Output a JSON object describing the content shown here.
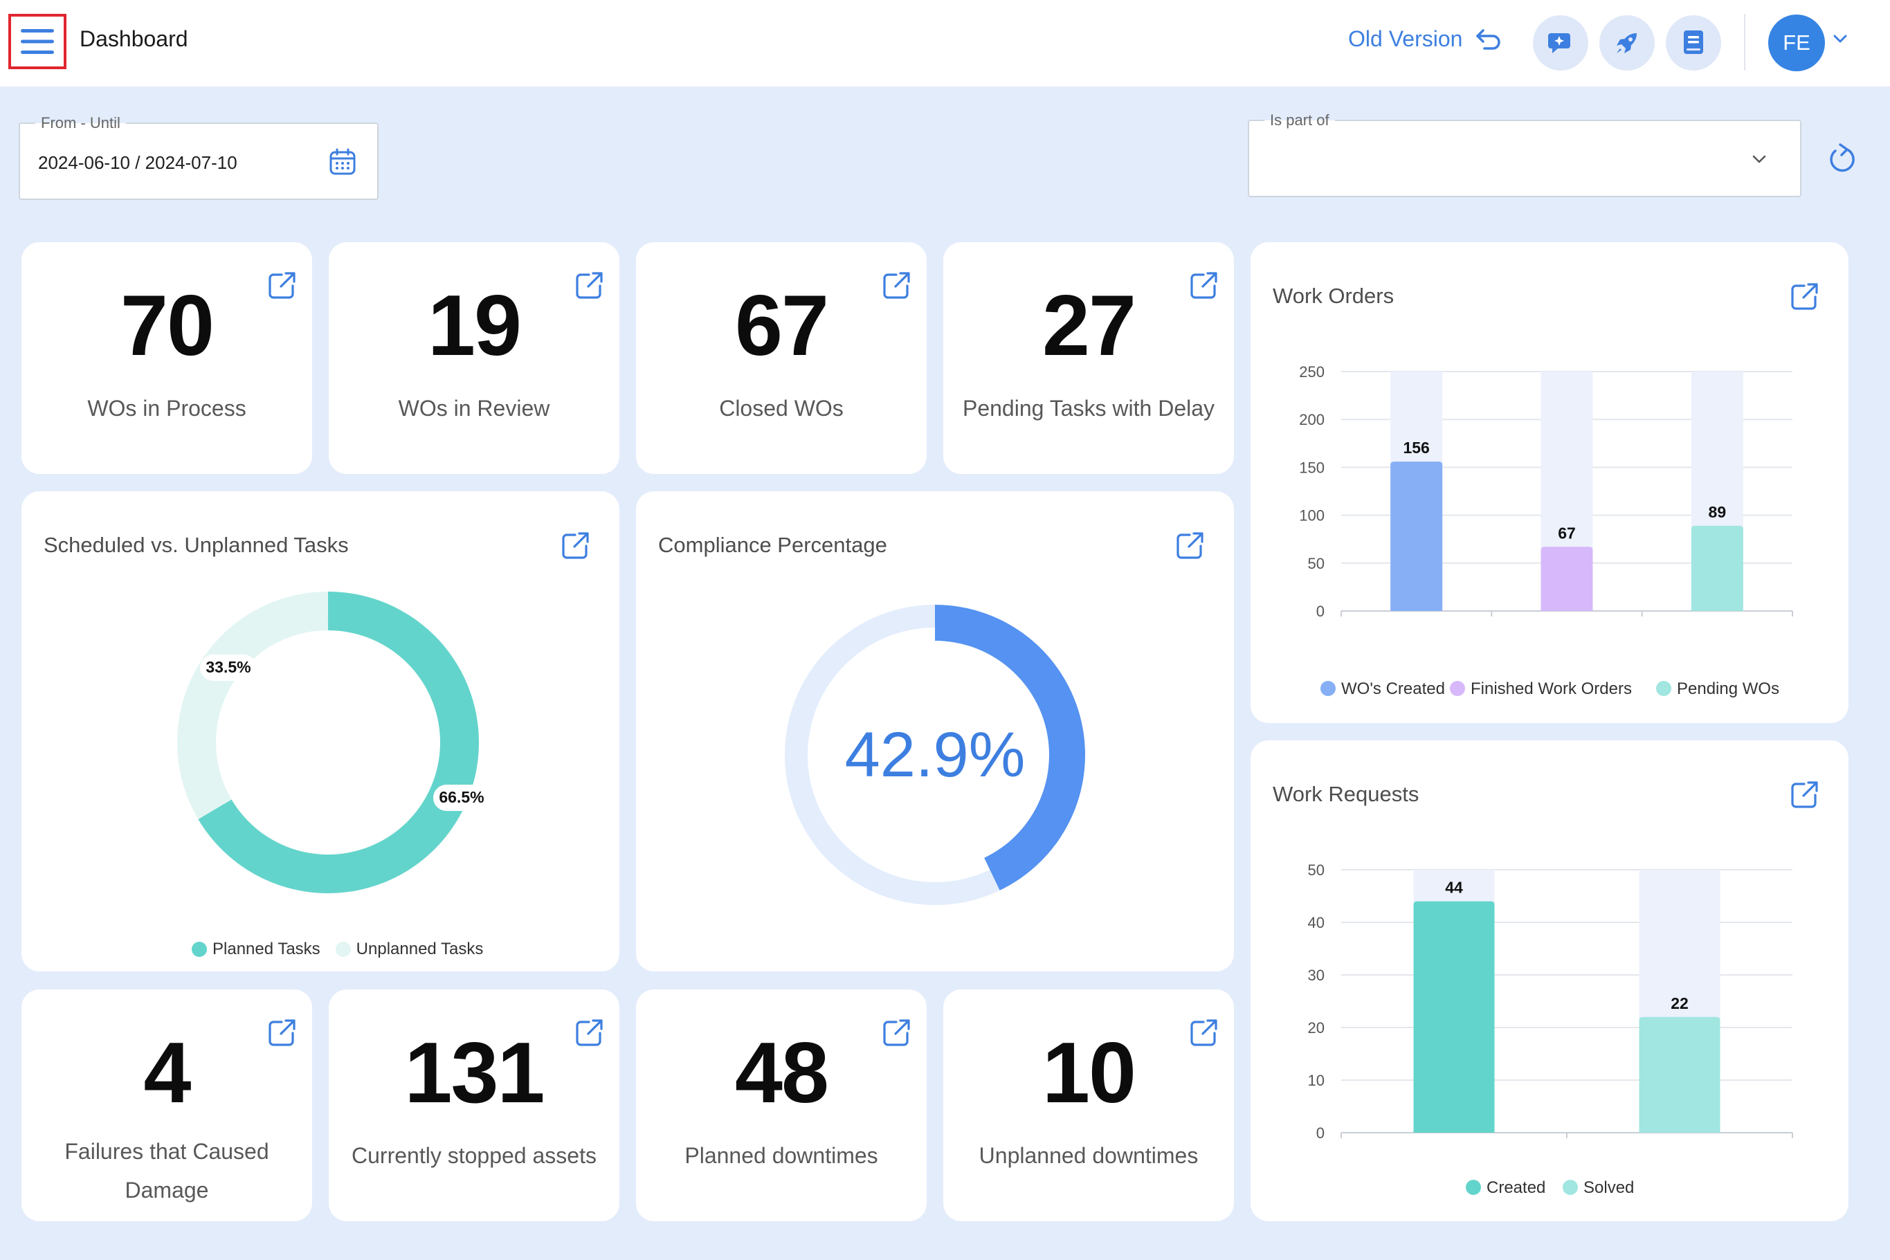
{
  "header": {
    "title": "Dashboard",
    "old_version_label": "Old Version",
    "avatar_initials": "FE"
  },
  "filters": {
    "date_label": "From - Until",
    "date_value": "2024-06-10 / 2024-07-10",
    "part_of_label": "Is part of",
    "part_of_value": ""
  },
  "kpis_top": [
    {
      "value": "70",
      "label": "WOs in Process"
    },
    {
      "value": "19",
      "label": "WOs in Review"
    },
    {
      "value": "67",
      "label": "Closed WOs"
    },
    {
      "value": "27",
      "label": "Pending Tasks with Delay"
    }
  ],
  "kpis_bottom": [
    {
      "value": "4",
      "label": "Failures that Caused Damage"
    },
    {
      "value": "131",
      "label": "Currently stopped assets"
    },
    {
      "value": "48",
      "label": "Planned downtimes"
    },
    {
      "value": "10",
      "label": "Unplanned downtimes"
    }
  ],
  "scheduled": {
    "title": "Scheduled vs. Unplanned Tasks",
    "planned_label": "66.5%",
    "unplanned_label": "33.5%",
    "legend": [
      "Planned Tasks",
      "Unplanned Tasks"
    ]
  },
  "compliance": {
    "title": "Compliance Percentage",
    "value_label": "42.9%"
  },
  "work_orders": {
    "title": "Work Orders"
  },
  "work_requests": {
    "title": "Work Requests"
  },
  "colors": {
    "accent": "#3d7fe0",
    "teal": "#63d4cb",
    "teal_light": "#a1e6e0",
    "blue_bar": "#86aff5",
    "purple_bar": "#d7b8fa",
    "donut_light": "#e2f5f3",
    "compliance_track": "#e3edfc",
    "compliance_fill": "#5592f1"
  },
  "chart_data": [
    {
      "type": "pie",
      "title": "Scheduled vs. Unplanned Tasks",
      "categories": [
        "Planned Tasks",
        "Unplanned Tasks"
      ],
      "values": [
        66.5,
        33.5
      ]
    },
    {
      "type": "pie",
      "title": "Compliance Percentage",
      "values": [
        42.9
      ],
      "max": 100
    },
    {
      "type": "bar",
      "title": "Work Orders",
      "categories": [
        "WO's Created",
        "Finished Work Orders",
        "Pending WOs"
      ],
      "values": [
        156,
        67,
        89
      ],
      "data_labels": [
        "156",
        "67",
        "89"
      ],
      "ylim": [
        0,
        250
      ],
      "yticks": [
        "0",
        "50",
        "100",
        "150",
        "200",
        "250"
      ],
      "legend": [
        "WO's Created",
        "Finished Work Orders",
        "Pending WOs"
      ],
      "legend_position": "bottom",
      "grid": true
    },
    {
      "type": "bar",
      "title": "Work Requests",
      "categories": [
        "Created",
        "Solved"
      ],
      "values": [
        44,
        22
      ],
      "data_labels": [
        "44",
        "22"
      ],
      "ylim": [
        0,
        50
      ],
      "yticks": [
        "0",
        "10",
        "20",
        "30",
        "40",
        "50"
      ],
      "legend": [
        "Created",
        "Solved"
      ],
      "legend_position": "bottom",
      "grid": true
    }
  ]
}
